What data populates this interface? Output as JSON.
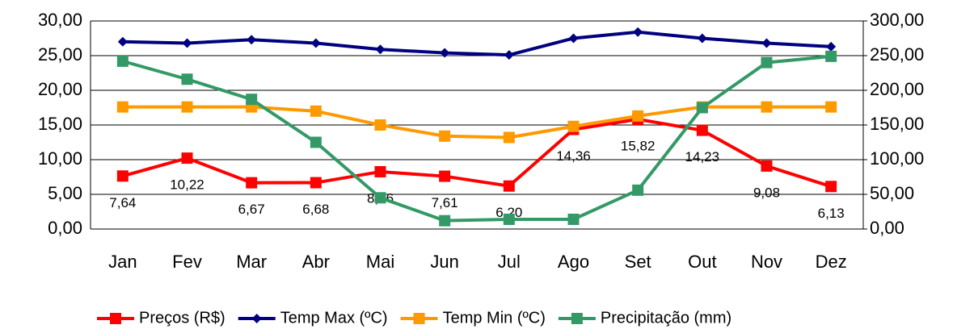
{
  "chart_data": {
    "type": "line",
    "categories": [
      "Jan",
      "Fev",
      "Mar",
      "Abr",
      "Mai",
      "Jun",
      "Jul",
      "Ago",
      "Set",
      "Out",
      "Nov",
      "Dez"
    ],
    "ylim": [
      0,
      30
    ],
    "yticks": [
      {
        "value": 0,
        "label": "0,00"
      },
      {
        "value": 5,
        "label": "5,00"
      },
      {
        "value": 10,
        "label": "10,00"
      },
      {
        "value": 15,
        "label": "15,00"
      },
      {
        "value": 20,
        "label": "20,00"
      },
      {
        "value": 25,
        "label": "25,00"
      },
      {
        "value": 30,
        "label": "30,00"
      }
    ],
    "y2lim": [
      0,
      300
    ],
    "y2ticks": [
      {
        "value": 0,
        "label": "0,00"
      },
      {
        "value": 50,
        "label": "50,00"
      },
      {
        "value": 100,
        "label": "100,00"
      },
      {
        "value": 150,
        "label": "150,00"
      },
      {
        "value": 200,
        "label": "200,00"
      },
      {
        "value": 250,
        "label": "250,00"
      },
      {
        "value": 300,
        "label": "300,00"
      }
    ],
    "grid": true,
    "legend": "bottom",
    "series": [
      {
        "name": "Preços (R$)",
        "color": "#ff0000",
        "marker": "square",
        "values": [
          7.64,
          10.22,
          6.67,
          6.68,
          8.26,
          7.61,
          6.2,
          14.36,
          15.82,
          14.23,
          9.08,
          6.13
        ],
        "value_labels": [
          "7,64",
          "10,22",
          "6,67",
          "6,68",
          "8,26",
          "7,61",
          "6,20",
          "14,36",
          "15,82",
          "14,23",
          "9,08",
          "6,13"
        ]
      },
      {
        "name": "Temp Max (ºC)",
        "color": "#000080",
        "marker": "diamond",
        "values": [
          27.0,
          26.8,
          27.3,
          26.8,
          25.9,
          25.4,
          25.1,
          27.5,
          28.4,
          27.5,
          26.8,
          26.3
        ]
      },
      {
        "name": "Temp Min (ºC)",
        "color": "#ff9900",
        "marker": "square",
        "values": [
          17.6,
          17.6,
          17.6,
          17.0,
          15.0,
          13.4,
          13.2,
          14.8,
          16.3,
          17.6,
          17.6,
          17.6
        ]
      },
      {
        "name": "Precipitação (mm)",
        "color": "#339966",
        "marker": "square",
        "axis": "y2",
        "values": [
          242,
          216,
          187,
          125,
          45,
          12,
          14,
          14,
          56,
          175,
          240,
          249
        ]
      }
    ]
  }
}
